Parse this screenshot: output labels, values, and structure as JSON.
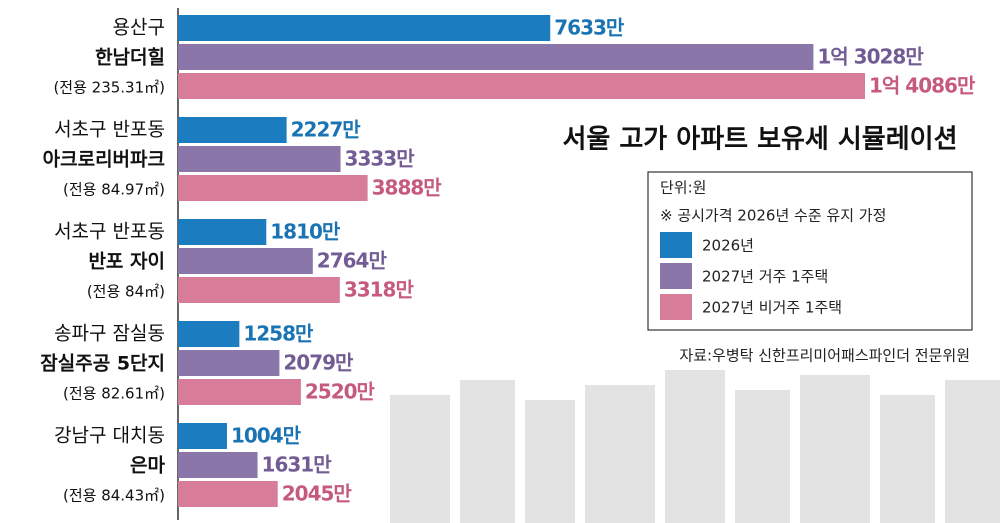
{
  "chart_data": {
    "type": "bar",
    "orientation": "horizontal",
    "title": "서울 고가 아파트 보유세 시뮬레이션",
    "unit": "단위:원",
    "note": "※ 공시가격 2026년 수준 유지 가정",
    "source": "자료:우병탁 신한프리미어패스파인더 전문위원",
    "categories": [
      [
        "용산구",
        "한남더힐",
        "(전용 235.31㎡)"
      ],
      [
        "서초구 반포동",
        "아크로리버파크",
        "(전용 84.97㎡)"
      ],
      [
        "서초구 반포동",
        "반포 자이",
        "(전용 84㎡)"
      ],
      [
        "송파구 잠실동",
        "잠실주공 5단지",
        "(전용 82.61㎡)"
      ],
      [
        "강남구 대치동",
        "은마",
        "(전용 84.43㎡)"
      ]
    ],
    "series": [
      {
        "name": "2026년",
        "color": "#1b7dbf",
        "label_color": "#1a74b3",
        "values": [
          7633,
          2227,
          1810,
          1258,
          1004
        ],
        "value_labels": [
          "7633만",
          "2227만",
          "1810만",
          "1258만",
          "1004만"
        ]
      },
      {
        "name": "2027년 거주 1주택",
        "color": "#8a76a8",
        "label_color": "#735c94",
        "values": [
          13028,
          3333,
          2764,
          2079,
          1631
        ],
        "value_labels": [
          "1억 3028만",
          "3333만",
          "2764만",
          "2079만",
          "1631만"
        ]
      },
      {
        "name": "2027년 비거주 1주택",
        "color": "#d87d99",
        "label_color": "#c65a7c",
        "values": [
          14086,
          3888,
          3318,
          2520,
          2045
        ],
        "value_labels": [
          "1억 4086만",
          "3888만",
          "3318만",
          "2520만",
          "2045만"
        ]
      }
    ]
  }
}
